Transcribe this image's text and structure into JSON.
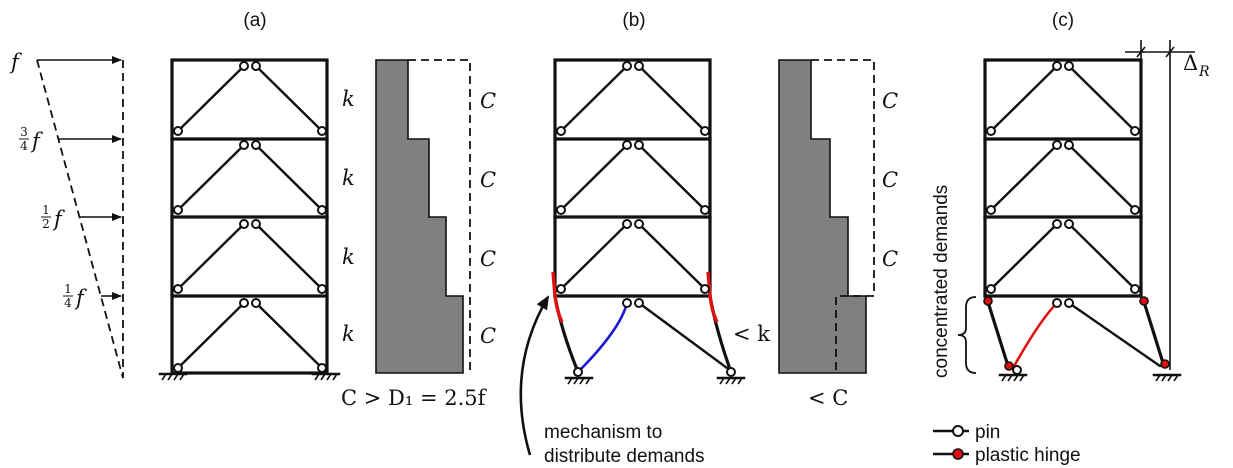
{
  "panels": {
    "a": {
      "label": "(a)",
      "force_top": "f",
      "force_3q": "3",
      "force_3q_den": "4",
      "force_half": "1",
      "force_half_den": "2",
      "force_quarter": "1",
      "force_quarter_den": "4",
      "force_sym": "f",
      "stiffness": [
        "k",
        "k",
        "k",
        "k"
      ],
      "capacity": [
        "C",
        "C",
        "C",
        "C"
      ],
      "bottom_eq": "C > D₁ = 2.5f"
    },
    "b": {
      "label": "(b)",
      "capacity": [
        "C",
        "C",
        "C"
      ],
      "reduced_stiffness": "< k",
      "reduced_capacity": "< C",
      "note_line1": "mechanism to",
      "note_line2": "distribute demands"
    },
    "c": {
      "label": "(c)",
      "drift": "Δ",
      "drift_sub": "R",
      "vertical_label": "concentrated demands"
    }
  },
  "legend": {
    "pin": "pin",
    "hinge": "plastic hinge"
  },
  "colors": {
    "frame": "#111111",
    "shade": "#808080",
    "hinge": "#e01010",
    "blue_member": "#1a1ad0",
    "red_member": "#e01010"
  }
}
